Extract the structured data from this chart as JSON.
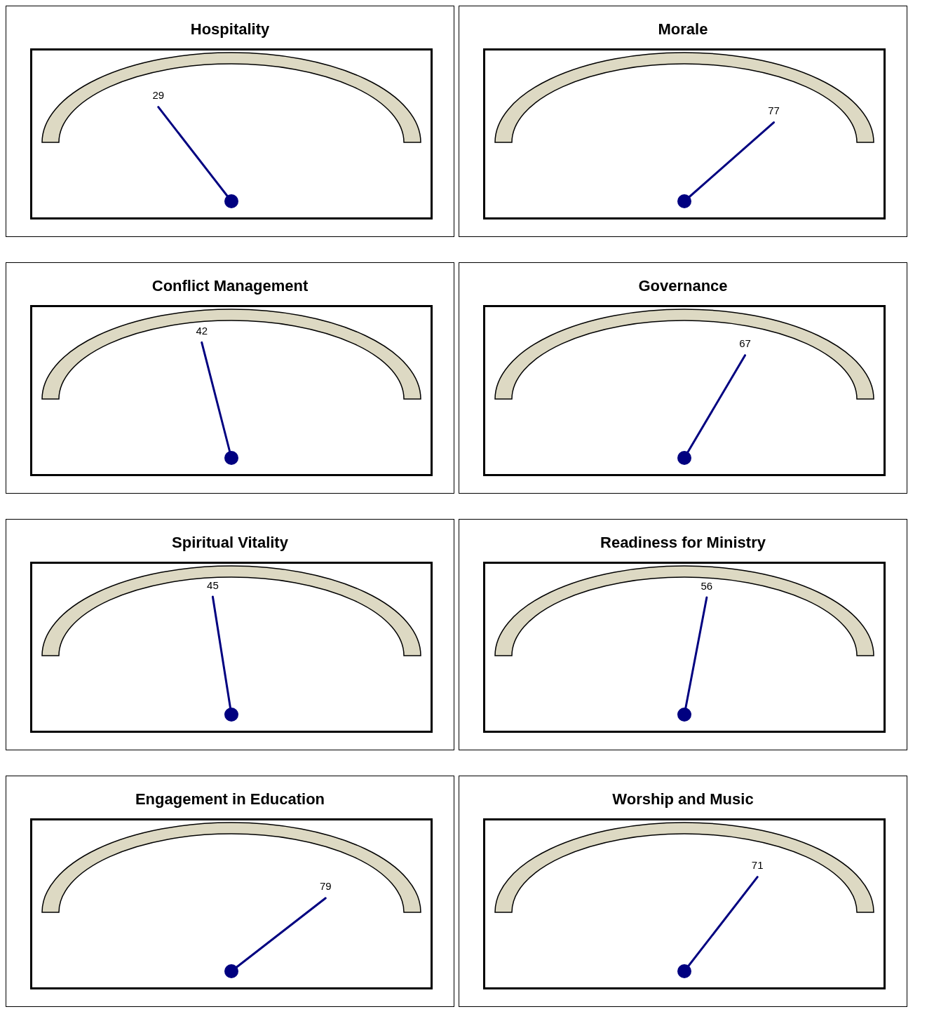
{
  "chart_data": [
    {
      "type": "other",
      "title": "Hospitality",
      "values": [
        29
      ],
      "data_labels": true
    },
    {
      "type": "other",
      "title": "Morale",
      "values": [
        77
      ],
      "data_labels": true
    },
    {
      "type": "other",
      "title": "Conflict Management",
      "values": [
        42
      ],
      "data_labels": true
    },
    {
      "type": "other",
      "title": "Governance",
      "values": [
        67
      ],
      "data_labels": true
    },
    {
      "type": "other",
      "title": "Spiritual Vitality",
      "values": [
        45
      ],
      "data_labels": true
    },
    {
      "type": "other",
      "title": "Readiness for Ministry",
      "values": [
        56
      ],
      "data_labels": true
    },
    {
      "type": "other",
      "title": "Engagement in Education",
      "values": [
        79
      ],
      "data_labels": true
    },
    {
      "type": "other",
      "title": "Worship and Music",
      "values": [
        71
      ],
      "data_labels": true
    }
  ]
}
